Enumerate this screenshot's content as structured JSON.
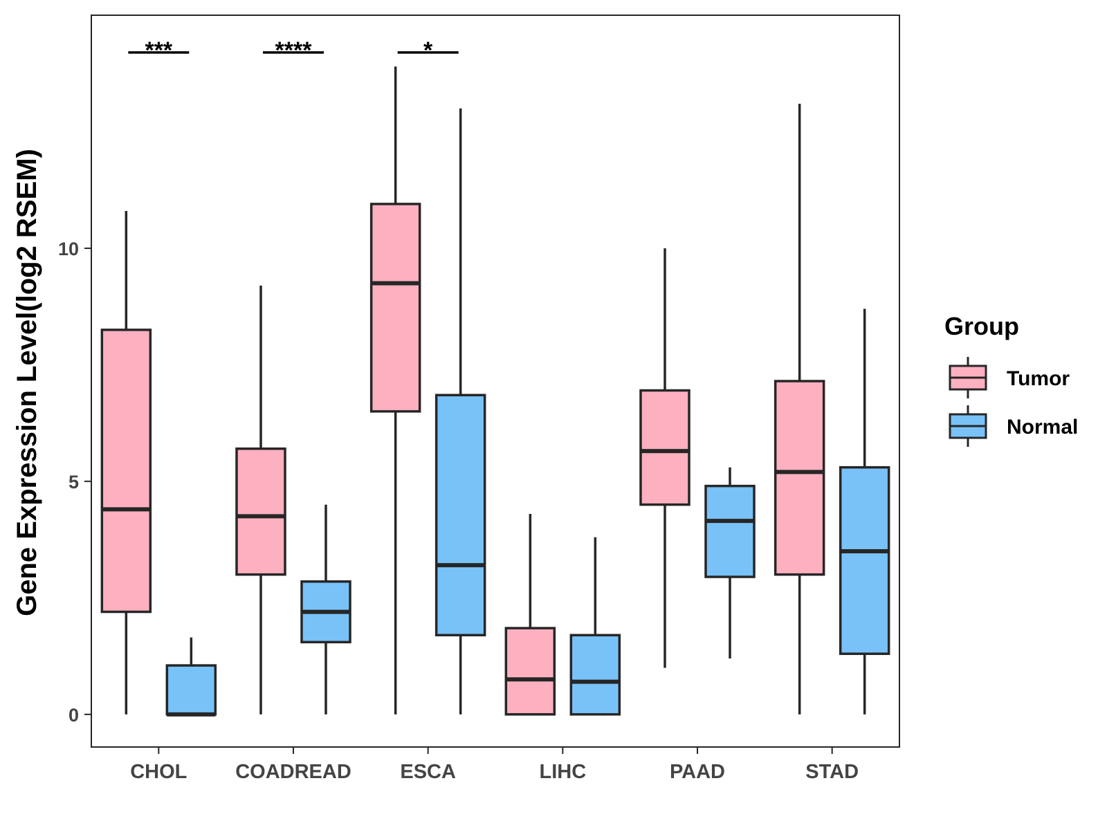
{
  "chart_data": {
    "type": "boxplot",
    "ylabel": "Gene Expression Level(log2 RSEM)",
    "xlabel": "",
    "ylim": [
      -0.7,
      15.0
    ],
    "yticks": [
      0,
      5,
      10
    ],
    "categories": [
      "CHOL",
      "COADREAD",
      "ESCA",
      "LIHC",
      "PAAD",
      "STAD"
    ],
    "legend": {
      "title": "Group",
      "position": "right",
      "entries": [
        {
          "name": "Tumor",
          "color": "#FDB0C0"
        },
        {
          "name": "Normal",
          "color": "#78C2F8"
        }
      ]
    },
    "series": [
      {
        "name": "Tumor",
        "color": "#FDB0C0",
        "boxes": [
          {
            "min": 0.0,
            "q1": 2.2,
            "median": 4.4,
            "q3": 8.25,
            "max": 10.8
          },
          {
            "min": 0.0,
            "q1": 3.0,
            "median": 4.25,
            "q3": 5.7,
            "max": 9.2
          },
          {
            "min": 0.0,
            "q1": 6.5,
            "median": 9.25,
            "q3": 10.95,
            "max": 13.9
          },
          {
            "min": 0.0,
            "q1": 0.0,
            "median": 0.75,
            "q3": 1.85,
            "max": 4.3
          },
          {
            "min": 1.0,
            "q1": 4.5,
            "median": 5.65,
            "q3": 6.95,
            "max": 10.0
          },
          {
            "min": 0.0,
            "q1": 3.0,
            "median": 5.2,
            "q3": 7.15,
            "max": 13.1
          }
        ]
      },
      {
        "name": "Normal",
        "color": "#78C2F8",
        "boxes": [
          {
            "min": 0.0,
            "q1": 0.0,
            "median": 0.0,
            "q3": 1.05,
            "max": 1.65
          },
          {
            "min": 0.0,
            "q1": 1.55,
            "median": 2.2,
            "q3": 2.85,
            "max": 4.5
          },
          {
            "min": 0.0,
            "q1": 1.7,
            "median": 3.2,
            "q3": 6.85,
            "max": 13.0
          },
          {
            "min": 0.0,
            "q1": 0.0,
            "median": 0.7,
            "q3": 1.7,
            "max": 3.8
          },
          {
            "min": 1.2,
            "q1": 2.95,
            "median": 4.15,
            "q3": 4.9,
            "max": 5.3
          },
          {
            "min": 0.0,
            "q1": 1.3,
            "median": 3.5,
            "q3": 5.3,
            "max": 8.7
          }
        ]
      }
    ],
    "annotations": [
      {
        "category": "CHOL",
        "label": "***",
        "y": 14.2
      },
      {
        "category": "COADREAD",
        "label": "****",
        "y": 14.2
      },
      {
        "category": "ESCA",
        "label": "*",
        "y": 14.2
      }
    ]
  }
}
